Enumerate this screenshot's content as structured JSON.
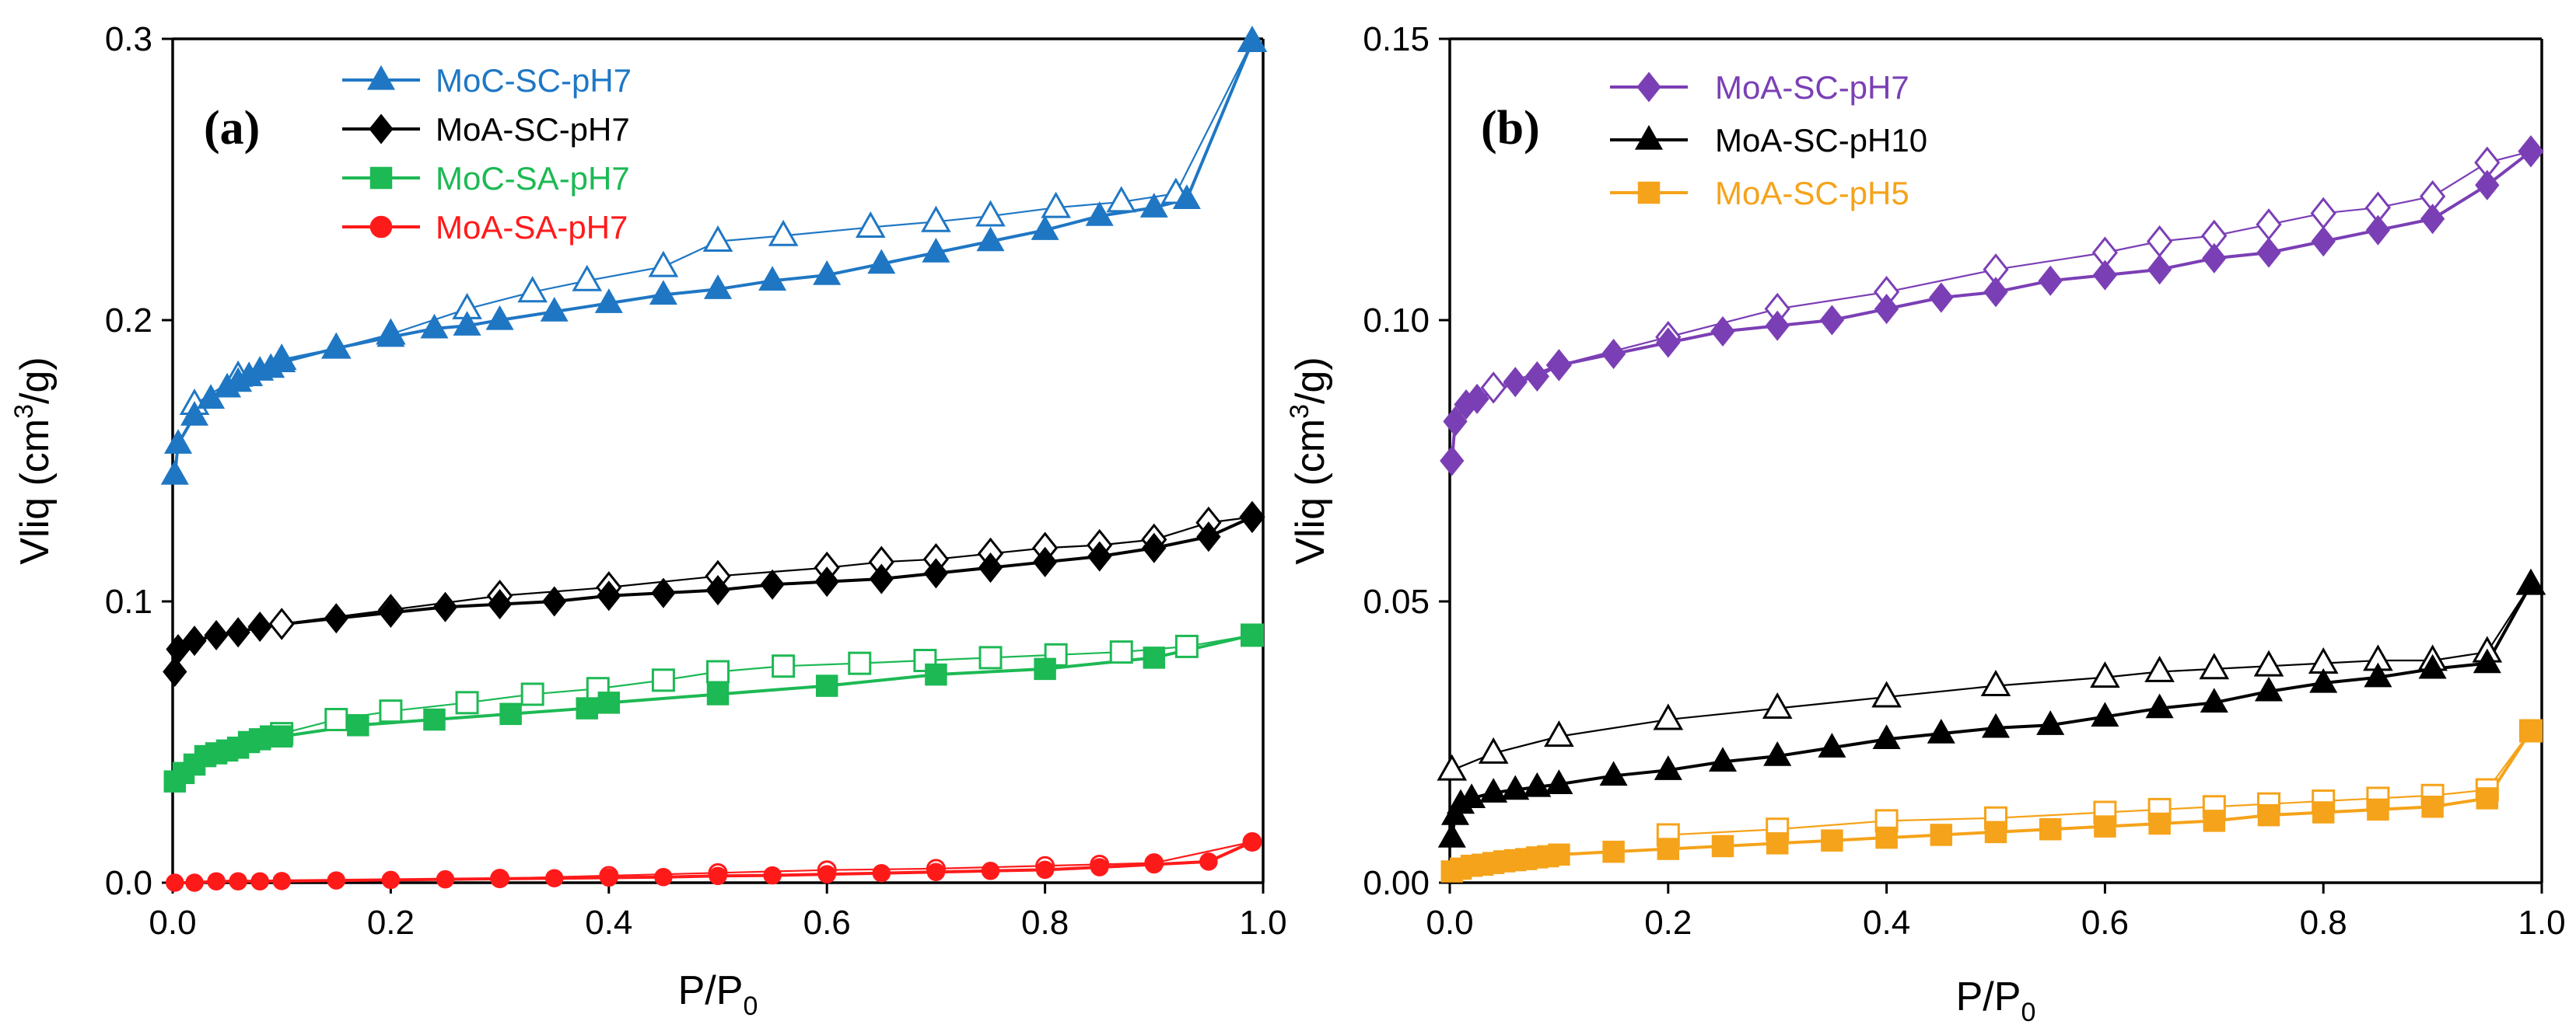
{
  "chart_data": [
    {
      "type": "line",
      "panel_label": "(a)",
      "xlabel_main": "P/P",
      "xlabel_sub": "0",
      "ylabel_main": "Vliq (cm",
      "ylabel_sup": "3",
      "ylabel_end": "/g)",
      "xlim": [
        0,
        1
      ],
      "ylim": [
        0,
        0.3
      ],
      "xticks": [
        0,
        0.2,
        0.4,
        0.6,
        0.8,
        1.0
      ],
      "xtick_labels": [
        "0.0",
        "0.2",
        "0.4",
        "0.6",
        "0.8",
        "1.0"
      ],
      "yticks": [
        0,
        0.1,
        0.2,
        0.3
      ],
      "ytick_labels": [
        "0.0",
        "0.1",
        "0.2",
        "0.3"
      ],
      "grid": false,
      "legend_position": "top-center",
      "series": [
        {
          "name": "MoC-SC-pH7",
          "color": "#1f77c4",
          "marker": "triangle",
          "adsorption": {
            "x": [
              0.002,
              0.005,
              0.02,
              0.035,
              0.05,
              0.06,
              0.07,
              0.08,
              0.09,
              0.1,
              0.15,
              0.2,
              0.24,
              0.27,
              0.3,
              0.35,
              0.4,
              0.45,
              0.5,
              0.55,
              0.6,
              0.65,
              0.7,
              0.75,
              0.8,
              0.85,
              0.9,
              0.93,
              0.99
            ],
            "y": [
              0.145,
              0.156,
              0.166,
              0.172,
              0.176,
              0.178,
              0.18,
              0.182,
              0.183,
              0.185,
              0.19,
              0.194,
              0.197,
              0.198,
              0.2,
              0.203,
              0.206,
              0.209,
              0.211,
              0.214,
              0.216,
              0.22,
              0.224,
              0.228,
              0.232,
              0.237,
              0.24,
              0.243,
              0.299
            ]
          },
          "desorption": {
            "x": [
              0.99,
              0.92,
              0.87,
              0.81,
              0.75,
              0.7,
              0.64,
              0.56,
              0.5,
              0.45,
              0.38,
              0.33,
              0.27,
              0.2,
              0.15,
              0.1,
              0.06,
              0.02
            ],
            "y": [
              0.299,
              0.245,
              0.242,
              0.24,
              0.237,
              0.235,
              0.233,
              0.23,
              0.228,
              0.219,
              0.214,
              0.21,
              0.204,
              0.195,
              0.19,
              0.186,
              0.18,
              0.17
            ]
          }
        },
        {
          "name": "MoA-SC-pH7",
          "color": "#000000",
          "marker": "diamond",
          "adsorption": {
            "x": [
              0.002,
              0.005,
              0.02,
              0.04,
              0.06,
              0.08,
              0.15,
              0.2,
              0.25,
              0.3,
              0.35,
              0.4,
              0.45,
              0.5,
              0.55,
              0.6,
              0.65,
              0.7,
              0.75,
              0.8,
              0.85,
              0.9,
              0.95,
              0.99
            ],
            "y": [
              0.075,
              0.083,
              0.086,
              0.088,
              0.089,
              0.091,
              0.094,
              0.096,
              0.098,
              0.099,
              0.1,
              0.102,
              0.103,
              0.104,
              0.106,
              0.107,
              0.108,
              0.11,
              0.112,
              0.114,
              0.116,
              0.119,
              0.123,
              0.13
            ]
          },
          "desorption": {
            "x": [
              0.99,
              0.95,
              0.9,
              0.85,
              0.8,
              0.75,
              0.7,
              0.65,
              0.6,
              0.5,
              0.4,
              0.3,
              0.2,
              0.1
            ],
            "y": [
              0.13,
              0.128,
              0.122,
              0.12,
              0.119,
              0.117,
              0.115,
              0.114,
              0.112,
              0.109,
              0.105,
              0.102,
              0.097,
              0.092
            ]
          }
        },
        {
          "name": "MoC-SA-pH7",
          "color": "#1db954",
          "marker": "square",
          "adsorption": {
            "x": [
              0.002,
              0.01,
              0.02,
              0.03,
              0.04,
              0.05,
              0.06,
              0.07,
              0.08,
              0.09,
              0.1,
              0.17,
              0.24,
              0.31,
              0.38,
              0.4,
              0.5,
              0.6,
              0.7,
              0.8,
              0.9,
              0.99
            ],
            "y": [
              0.036,
              0.039,
              0.042,
              0.045,
              0.046,
              0.047,
              0.048,
              0.05,
              0.051,
              0.052,
              0.052,
              0.056,
              0.058,
              0.06,
              0.062,
              0.064,
              0.067,
              0.07,
              0.074,
              0.076,
              0.08,
              0.088
            ]
          },
          "desorption": {
            "x": [
              0.99,
              0.93,
              0.87,
              0.81,
              0.75,
              0.69,
              0.63,
              0.56,
              0.5,
              0.45,
              0.39,
              0.33,
              0.27,
              0.2,
              0.15,
              0.1
            ],
            "y": [
              0.088,
              0.084,
              0.082,
              0.081,
              0.08,
              0.079,
              0.078,
              0.077,
              0.075,
              0.072,
              0.069,
              0.067,
              0.064,
              0.061,
              0.058,
              0.053
            ]
          }
        },
        {
          "name": "MoA-SA-pH7",
          "color": "#ff1a1a",
          "marker": "circle",
          "adsorption": {
            "x": [
              0.002,
              0.02,
              0.04,
              0.06,
              0.08,
              0.1,
              0.15,
              0.2,
              0.25,
              0.3,
              0.35,
              0.4,
              0.45,
              0.5,
              0.55,
              0.6,
              0.65,
              0.7,
              0.75,
              0.8,
              0.85,
              0.9,
              0.95,
              0.99
            ],
            "y": [
              0.0,
              0.0,
              0.0005,
              0.0005,
              0.0005,
              0.0006,
              0.0008,
              0.001,
              0.0012,
              0.0014,
              0.0016,
              0.0018,
              0.002,
              0.0024,
              0.0026,
              0.003,
              0.0034,
              0.0038,
              0.0042,
              0.0046,
              0.0055,
              0.0065,
              0.0075,
              0.0145
            ]
          },
          "desorption": {
            "x": [
              0.99,
              0.9,
              0.85,
              0.8,
              0.7,
              0.6,
              0.5,
              0.4,
              0.3
            ],
            "y": [
              0.0145,
              0.007,
              0.0065,
              0.006,
              0.005,
              0.0045,
              0.0035,
              0.0025,
              0.0015
            ]
          }
        }
      ]
    },
    {
      "type": "line",
      "panel_label": "(b)",
      "xlabel_main": "P/P",
      "xlabel_sub": "0",
      "ylabel_main": "Vliq (cm",
      "ylabel_sup": "3",
      "ylabel_end": "/g)",
      "xlim": [
        0,
        1
      ],
      "ylim": [
        0,
        0.15
      ],
      "xticks": [
        0,
        0.2,
        0.4,
        0.6,
        0.8,
        1.0
      ],
      "xtick_labels": [
        "0.0",
        "0.2",
        "0.4",
        "0.6",
        "0.8",
        "1.0"
      ],
      "yticks": [
        0,
        0.05,
        0.1,
        0.15
      ],
      "ytick_labels": [
        "0.00",
        "0.05",
        "0.10",
        "0.15"
      ],
      "grid": false,
      "legend_position": "top-left",
      "series": [
        {
          "name": "MoA-SC-pH7",
          "color": "#7b3fb5",
          "marker": "diamond",
          "adsorption": {
            "x": [
              0.002,
              0.005,
              0.015,
              0.025,
              0.06,
              0.08,
              0.1,
              0.15,
              0.2,
              0.25,
              0.3,
              0.35,
              0.4,
              0.45,
              0.5,
              0.55,
              0.6,
              0.65,
              0.7,
              0.75,
              0.8,
              0.85,
              0.9,
              0.95,
              0.99
            ],
            "y": [
              0.075,
              0.082,
              0.085,
              0.086,
              0.089,
              0.09,
              0.092,
              0.094,
              0.096,
              0.098,
              0.099,
              0.1,
              0.102,
              0.104,
              0.105,
              0.107,
              0.108,
              0.109,
              0.111,
              0.112,
              0.114,
              0.116,
              0.118,
              0.124,
              0.13
            ]
          },
          "desorption": {
            "x": [
              0.99,
              0.95,
              0.9,
              0.85,
              0.8,
              0.75,
              0.7,
              0.65,
              0.6,
              0.5,
              0.4,
              0.3,
              0.2,
              0.1,
              0.04
            ],
            "y": [
              0.13,
              0.128,
              0.122,
              0.12,
              0.119,
              0.117,
              0.115,
              0.114,
              0.112,
              0.109,
              0.105,
              0.102,
              0.097,
              0.092,
              0.088
            ]
          }
        },
        {
          "name": "MoA-SC-pH10",
          "color": "#000000",
          "marker": "triangle",
          "adsorption": {
            "x": [
              0.002,
              0.005,
              0.01,
              0.02,
              0.04,
              0.06,
              0.08,
              0.1,
              0.15,
              0.2,
              0.25,
              0.3,
              0.35,
              0.4,
              0.45,
              0.5,
              0.55,
              0.6,
              0.65,
              0.7,
              0.75,
              0.8,
              0.85,
              0.9,
              0.95,
              0.99
            ],
            "y": [
              0.008,
              0.012,
              0.014,
              0.015,
              0.016,
              0.0165,
              0.017,
              0.0175,
              0.019,
              0.02,
              0.0215,
              0.0225,
              0.024,
              0.0255,
              0.0265,
              0.0275,
              0.028,
              0.0295,
              0.031,
              0.032,
              0.034,
              0.0355,
              0.0365,
              0.038,
              0.039,
              0.053
            ]
          },
          "desorption": {
            "x": [
              0.99,
              0.95,
              0.9,
              0.85,
              0.8,
              0.75,
              0.7,
              0.65,
              0.6,
              0.5,
              0.4,
              0.3,
              0.2,
              0.1,
              0.04,
              0.002
            ],
            "y": [
              0.053,
              0.041,
              0.0395,
              0.0395,
              0.039,
              0.0385,
              0.038,
              0.0375,
              0.0365,
              0.035,
              0.033,
              0.031,
              0.029,
              0.026,
              0.023,
              0.02
            ]
          }
        },
        {
          "name": "MoA-SC-pH5",
          "color": "#f5a31a",
          "marker": "square",
          "adsorption": {
            "x": [
              0.002,
              0.01,
              0.02,
              0.03,
              0.04,
              0.05,
              0.06,
              0.07,
              0.08,
              0.09,
              0.1,
              0.15,
              0.2,
              0.25,
              0.3,
              0.35,
              0.4,
              0.45,
              0.5,
              0.55,
              0.6,
              0.65,
              0.7,
              0.75,
              0.8,
              0.85,
              0.9,
              0.95,
              0.99
            ],
            "y": [
              0.002,
              0.0025,
              0.003,
              0.0032,
              0.0035,
              0.0038,
              0.004,
              0.0042,
              0.0045,
              0.0047,
              0.005,
              0.0055,
              0.006,
              0.0065,
              0.007,
              0.0075,
              0.008,
              0.0085,
              0.009,
              0.0095,
              0.01,
              0.0105,
              0.011,
              0.012,
              0.0125,
              0.013,
              0.0135,
              0.015,
              0.027
            ]
          },
          "desorption": {
            "x": [
              0.99,
              0.95,
              0.9,
              0.85,
              0.8,
              0.75,
              0.7,
              0.65,
              0.6,
              0.5,
              0.4,
              0.3,
              0.2
            ],
            "y": [
              0.027,
              0.0165,
              0.0155,
              0.015,
              0.0145,
              0.014,
              0.0135,
              0.013,
              0.0125,
              0.0115,
              0.011,
              0.0095,
              0.0085
            ]
          }
        }
      ]
    }
  ]
}
